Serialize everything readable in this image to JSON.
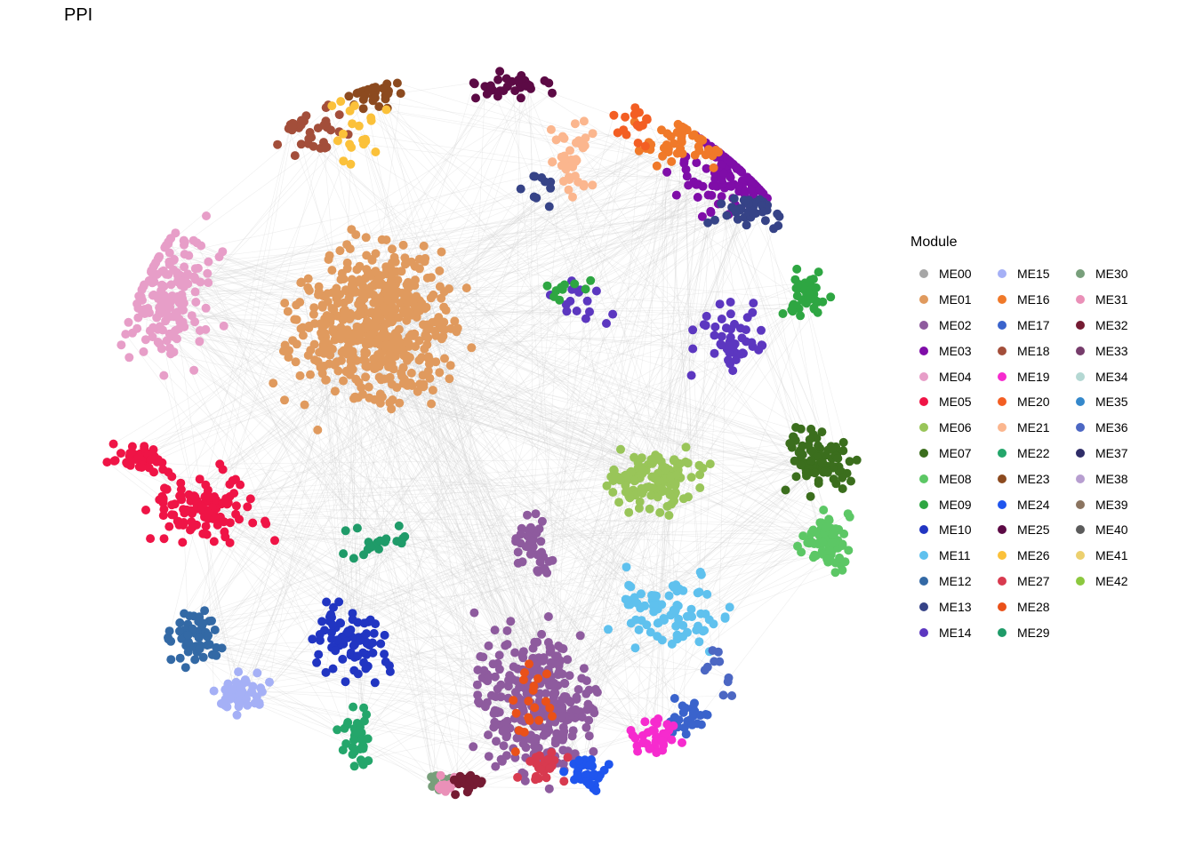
{
  "title": "PPI",
  "legend": {
    "title": "Module",
    "items": [
      {
        "label": "ME00",
        "color": "#a6a6a6"
      },
      {
        "label": "ME01",
        "color": "#e09a5e"
      },
      {
        "label": "ME02",
        "color": "#8e5b9e"
      },
      {
        "label": "ME03",
        "color": "#7f0da8"
      },
      {
        "label": "ME04",
        "color": "#e79ec8"
      },
      {
        "label": "ME05",
        "color": "#ef1446"
      },
      {
        "label": "ME06",
        "color": "#99c559"
      },
      {
        "label": "ME07",
        "color": "#3b6e1d"
      },
      {
        "label": "ME08",
        "color": "#5cc765"
      },
      {
        "label": "ME09",
        "color": "#2ea642"
      },
      {
        "label": "ME10",
        "color": "#2135c2"
      },
      {
        "label": "ME11",
        "color": "#5fc1ee"
      },
      {
        "label": "ME12",
        "color": "#3369a5"
      },
      {
        "label": "ME13",
        "color": "#364387"
      },
      {
        "label": "ME14",
        "color": "#5c37c0"
      },
      {
        "label": "ME15",
        "color": "#a5b0f6"
      },
      {
        "label": "ME16",
        "color": "#f07929"
      },
      {
        "label": "ME17",
        "color": "#3a63cc"
      },
      {
        "label": "ME18",
        "color": "#a34e3a"
      },
      {
        "label": "ME19",
        "color": "#f62bce"
      },
      {
        "label": "ME20",
        "color": "#f35e23"
      },
      {
        "label": "ME21",
        "color": "#fbb68e"
      },
      {
        "label": "ME22",
        "color": "#24a66b"
      },
      {
        "label": "ME23",
        "color": "#8c4a1f"
      },
      {
        "label": "ME24",
        "color": "#1f55ee"
      },
      {
        "label": "ME25",
        "color": "#5c0a45"
      },
      {
        "label": "ME26",
        "color": "#fbc13a"
      },
      {
        "label": "ME27",
        "color": "#d83a4f"
      },
      {
        "label": "ME28",
        "color": "#ea5119"
      },
      {
        "label": "ME29",
        "color": "#1f9b69"
      },
      {
        "label": "ME30",
        "color": "#789f7b"
      },
      {
        "label": "ME31",
        "color": "#ea90b8"
      },
      {
        "label": "ME32",
        "color": "#751b33"
      },
      {
        "label": "ME33",
        "color": "#763c6b"
      },
      {
        "label": "ME34",
        "color": "#b4d8d3"
      },
      {
        "label": "ME35",
        "color": "#3588cb"
      },
      {
        "label": "ME36",
        "color": "#4c67c3"
      },
      {
        "label": "ME37",
        "color": "#2f2d68"
      },
      {
        "label": "ME38",
        "color": "#b79ed0"
      },
      {
        "label": "ME39",
        "color": "#8b7460"
      },
      {
        "label": "ME40",
        "color": "#5b5b5b"
      },
      {
        "label": "ME41",
        "color": "#ecd06e"
      },
      {
        "label": "ME42",
        "color": "#8cc83f"
      }
    ]
  }
}
